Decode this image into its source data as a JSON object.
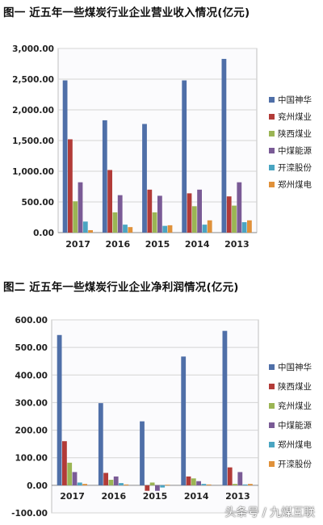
{
  "chart_data": [
    {
      "type": "bar",
      "title": "图一 近五年一些煤炭行业企业营业收入情况(亿元)",
      "categories": [
        "2017",
        "2016",
        "2015",
        "2014",
        "2013"
      ],
      "ylim": [
        0,
        3000
      ],
      "yticks": [
        "0.00",
        "500.00",
        "1,000.00",
        "1,500.00",
        "2,000.00",
        "2,500.00",
        "3,000.00"
      ],
      "ytick_values": [
        0,
        500,
        1000,
        1500,
        2000,
        2500,
        3000
      ],
      "grid": true,
      "legend_position": "right",
      "series": [
        {
          "name": "中国神华",
          "color": "#4f6fa8",
          "values": [
            2480,
            1830,
            1770,
            2480,
            2830
          ]
        },
        {
          "name": "兖州煤业",
          "color": "#b23b38",
          "values": [
            1520,
            1020,
            700,
            640,
            590
          ]
        },
        {
          "name": "陕西煤业",
          "color": "#9bb554",
          "values": [
            510,
            330,
            330,
            430,
            440
          ]
        },
        {
          "name": "中煤能源",
          "color": "#7a5b96",
          "values": [
            820,
            610,
            600,
            700,
            820
          ]
        },
        {
          "name": "开滦股份",
          "color": "#4aa5c2",
          "values": [
            180,
            130,
            110,
            130,
            170
          ]
        },
        {
          "name": "郑州煤电",
          "color": "#e0913a",
          "values": [
            40,
            90,
            120,
            200,
            200
          ]
        }
      ]
    },
    {
      "type": "bar",
      "title": "图二 近五年一些煤炭行业企业净利润情况(亿元)",
      "categories": [
        "2017",
        "2016",
        "2015",
        "2014",
        "2013"
      ],
      "ylim": [
        -100,
        600
      ],
      "yticks": [
        "-100.00",
        "0.00",
        "100.00",
        "200.00",
        "300.00",
        "400.00",
        "500.00",
        "600.00"
      ],
      "ytick_values": [
        -100,
        0,
        100,
        200,
        300,
        400,
        500,
        600
      ],
      "grid": true,
      "legend_position": "right",
      "series": [
        {
          "name": "中国神华",
          "color": "#4f6fa8",
          "values": [
            545,
            298,
            232,
            467,
            560
          ]
        },
        {
          "name": "陕西煤业",
          "color": "#b23b38",
          "values": [
            160,
            45,
            -20,
            32,
            65
          ]
        },
        {
          "name": "兖州煤业",
          "color": "#9bb554",
          "values": [
            82,
            20,
            10,
            25,
            5
          ]
        },
        {
          "name": "中煤能源",
          "color": "#7a5b96",
          "values": [
            48,
            32,
            -20,
            15,
            48
          ]
        },
        {
          "name": "郑州煤电",
          "color": "#4aa5c2",
          "values": [
            10,
            8,
            -8,
            5,
            3
          ]
        },
        {
          "name": "开滦股份",
          "color": "#e0913a",
          "values": [
            5,
            3,
            2,
            3,
            5
          ]
        }
      ]
    }
  ],
  "watermark": "头条号 / 九煤互联"
}
